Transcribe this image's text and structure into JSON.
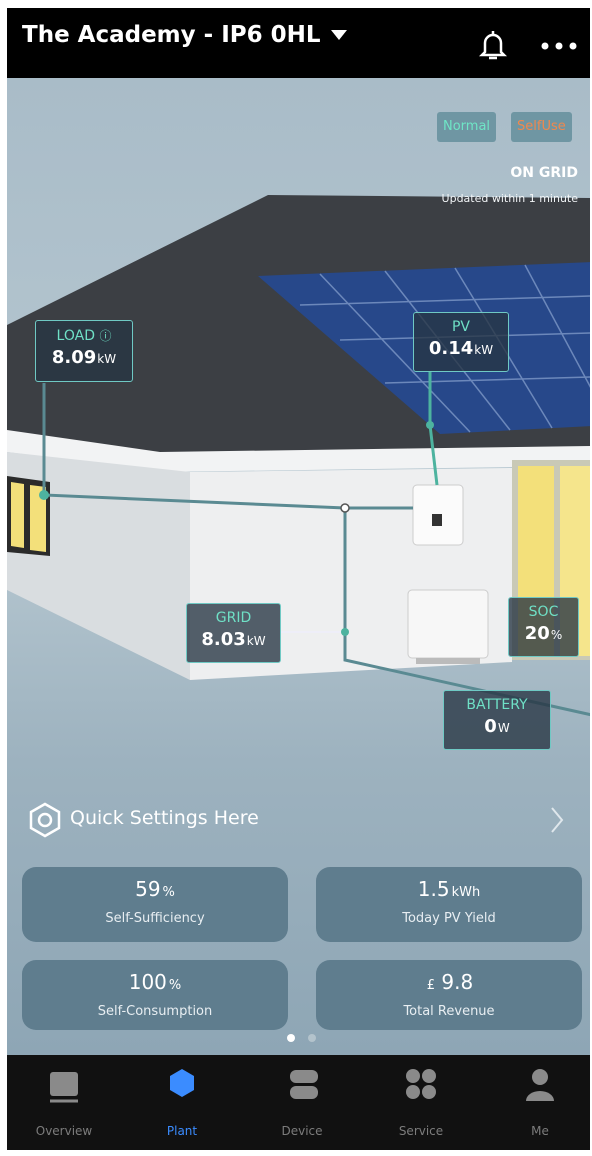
{
  "header": {
    "title": "The Academy - IP6 0HL"
  },
  "status": {
    "mode": "Normal",
    "work_mode": "SelfUse",
    "grid_state": "ON GRID",
    "updated": "Updated within 1 minute"
  },
  "flows": {
    "load": {
      "label": "LOAD",
      "value": "8.09",
      "unit": "kW"
    },
    "pv": {
      "label": "PV",
      "value": "0.14",
      "unit": "kW"
    },
    "grid": {
      "label": "GRID",
      "value": "8.03",
      "unit": "kW"
    },
    "soc": {
      "label": "SOC",
      "value": "20",
      "unit": "%"
    },
    "battery": {
      "label": "BATTERY",
      "value": "0",
      "unit": "W"
    }
  },
  "quick_settings": "Quick Settings Here",
  "stats": [
    {
      "value": "59",
      "unit": "%",
      "label": "Self-Sufficiency"
    },
    {
      "value": "1.5",
      "unit": "kWh",
      "label": "Today PV Yield"
    },
    {
      "value": "100",
      "unit": "%",
      "label": "Self-Consumption"
    },
    {
      "currency": "£",
      "value": "9.8",
      "label": "Total Revenue"
    }
  ],
  "nav": [
    "Overview",
    "Plant",
    "Device",
    "Service",
    "Me"
  ]
}
